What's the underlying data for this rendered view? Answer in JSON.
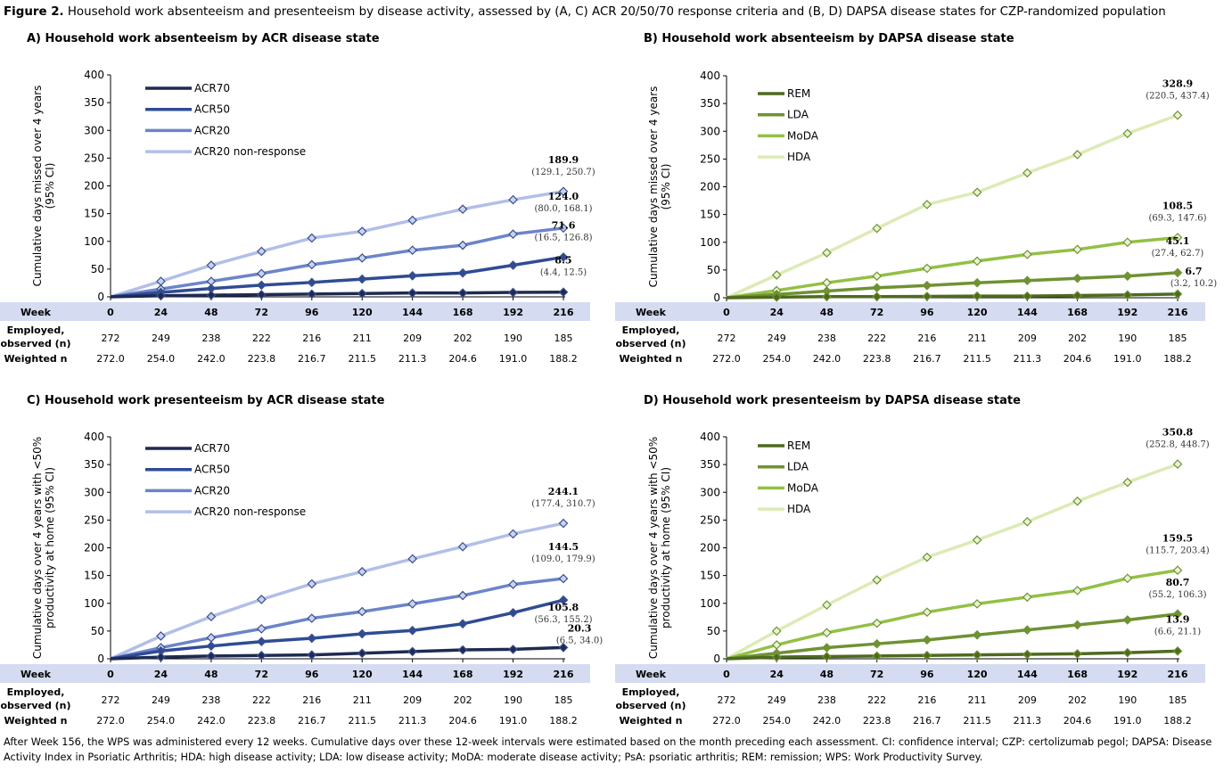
{
  "figure": {
    "label": "Figure 2.",
    "caption": " Household work absenteeism and presenteeism by disease activity, assessed by (A, C) ACR 20/50/70 response criteria and (B, D) DAPSA disease states for CZP-randomized population"
  },
  "footnote": "After Week 156, the WPS was administered every 12 weeks. Cumulative days over these 12-week intervals were estimated based on the month preceding each assessment. CI: confidence interval; CZP: certolizumab pegol; DAPSA: Disease Activity Index in Psoriatic Arthritis; HDA: high disease activity; LDA: low disease activity; MoDA: moderate disease activity; PsA: psoriatic arthritis; REM: remission; WPS: Work Productivity Survey.",
  "table": {
    "week_label": "Week",
    "employed_label_1": "Employed,",
    "employed_label_2": "observed (n)",
    "weighted_label": "Weighted n",
    "weeks": [
      "0",
      "24",
      "48",
      "72",
      "96",
      "120",
      "144",
      "168",
      "192",
      "216"
    ],
    "employed": [
      "272",
      "249",
      "238",
      "222",
      "216",
      "211",
      "209",
      "202",
      "190",
      "185"
    ],
    "weighted": [
      "272.0",
      "254.0",
      "242.0",
      "223.8",
      "216.7",
      "211.5",
      "211.3",
      "204.6",
      "191.0",
      "188.2"
    ],
    "band_color": "#d5dbf0"
  },
  "chart_data": [
    {
      "type": "line",
      "title": "A) Household work absenteeism by ACR disease state",
      "ylabel": [
        "Cumulative days missed over 4 years",
        "(95% CI)"
      ],
      "x": [
        0,
        24,
        48,
        72,
        96,
        120,
        144,
        168,
        192,
        216
      ],
      "ylim": [
        0,
        400
      ],
      "yticks": [
        "0",
        "50",
        "100",
        "150",
        "200",
        "250",
        "300",
        "350",
        "400"
      ],
      "legend": "top-left",
      "series": [
        {
          "name": "ACR70",
          "color": "#1e2a52",
          "values": [
            0,
            2,
            3,
            4,
            5,
            6,
            7,
            7,
            8,
            8.5
          ],
          "end_value": "8.5",
          "end_ci": "(4.4, 12.5)"
        },
        {
          "name": "ACR50",
          "color": "#2f4b93",
          "values": [
            0,
            8,
            15,
            21,
            26,
            32,
            38,
            43,
            57,
            71.6
          ],
          "end_value": "71.6",
          "end_ci": "(16.5, 126.8)"
        },
        {
          "name": "ACR20",
          "color": "#6c84c9",
          "values": [
            0,
            14,
            28,
            42,
            58,
            70,
            84,
            93,
            113,
            124.0
          ],
          "end_value": "124.0",
          "end_ci": "(80.0, 168.1)"
        },
        {
          "name": "ACR20 non-response",
          "color": "#b1bfe8",
          "values": [
            0,
            28,
            57,
            82,
            106,
            118,
            138,
            158,
            175,
            189.9
          ],
          "end_value": "189.9",
          "end_ci": "(129.1, 250.7)"
        }
      ]
    },
    {
      "type": "line",
      "title": "B) Household work absenteeism by DAPSA disease state",
      "ylabel": [
        "Cumulative days missed over 4 years",
        "(95% CI)"
      ],
      "x": [
        0,
        24,
        48,
        72,
        96,
        120,
        144,
        168,
        192,
        216
      ],
      "ylim": [
        0,
        400
      ],
      "yticks": [
        "0",
        "50",
        "100",
        "150",
        "200",
        "250",
        "300",
        "350",
        "400"
      ],
      "legend": "top-left",
      "series": [
        {
          "name": "REM",
          "color": "#4e6a1f",
          "values": [
            0,
            1,
            2,
            2,
            2.5,
            3,
            3,
            4,
            5,
            6.7
          ],
          "end_value": "6.7",
          "end_ci": "(3.2, 10.2)"
        },
        {
          "name": "LDA",
          "color": "#6f9232",
          "values": [
            0,
            6,
            12,
            18,
            22,
            27,
            31,
            35,
            39,
            45.1
          ],
          "end_value": "45.1",
          "end_ci": "(27.4, 62.7)"
        },
        {
          "name": "MoDA",
          "color": "#93c045",
          "values": [
            0,
            13,
            27,
            39,
            53,
            66,
            78,
            87,
            100,
            108.5
          ],
          "end_value": "108.5",
          "end_ci": "(69.3, 147.6)"
        },
        {
          "name": "HDA",
          "color": "#dcebb4",
          "values": [
            0,
            41,
            81,
            125,
            168,
            190,
            225,
            258,
            296,
            328.9
          ],
          "end_value": "328.9",
          "end_ci": "(220.5, 437.4)"
        }
      ]
    },
    {
      "type": "line",
      "title": "C) Household work presenteeism by ACR disease state",
      "ylabel": [
        "Cumulative days over 4 years with <50%",
        "productivity at home (95% CI)"
      ],
      "x": [
        0,
        24,
        48,
        72,
        96,
        120,
        144,
        168,
        192,
        216
      ],
      "ylim": [
        0,
        400
      ],
      "yticks": [
        "0",
        "50",
        "100",
        "150",
        "200",
        "250",
        "300",
        "350",
        "400"
      ],
      "legend": "top-left",
      "series": [
        {
          "name": "ACR70",
          "color": "#1e2a52",
          "values": [
            0,
            3,
            5,
            6,
            7,
            10,
            13,
            16,
            17,
            20.3
          ],
          "end_value": "20.3",
          "end_ci": "(6.5, 34.0)"
        },
        {
          "name": "ACR50",
          "color": "#2f4b93",
          "values": [
            0,
            14,
            23,
            31,
            37,
            45,
            51,
            63,
            83,
            105.8
          ],
          "end_value": "105.8",
          "end_ci": "(56.3, 155.2)"
        },
        {
          "name": "ACR20",
          "color": "#6c84c9",
          "values": [
            0,
            20,
            38,
            54,
            73,
            85,
            99,
            114,
            134,
            144.5
          ],
          "end_value": "144.5",
          "end_ci": "(109.0, 179.9)"
        },
        {
          "name": "ACR20 non-response",
          "color": "#b1bfe8",
          "values": [
            0,
            41,
            76,
            107,
            135,
            157,
            180,
            202,
            225,
            244.1
          ],
          "end_value": "244.1",
          "end_ci": "(177.4, 310.7)"
        }
      ]
    },
    {
      "type": "line",
      "title": "D) Household work presenteeism by DAPSA disease state",
      "ylabel": [
        "Cumulative days over 4 years with <50%",
        "productivity at home (95% CI)"
      ],
      "x": [
        0,
        24,
        48,
        72,
        96,
        120,
        144,
        168,
        192,
        216
      ],
      "ylim": [
        0,
        400
      ],
      "yticks": [
        "0",
        "50",
        "100",
        "150",
        "200",
        "250",
        "300",
        "350",
        "400"
      ],
      "legend": "top-left",
      "series": [
        {
          "name": "REM",
          "color": "#4e6a1f",
          "values": [
            0,
            3,
            4,
            5,
            6,
            7,
            8,
            9,
            11,
            13.9
          ],
          "end_value": "13.9",
          "end_ci": "(6.6, 21.1)"
        },
        {
          "name": "LDA",
          "color": "#6f9232",
          "values": [
            0,
            10,
            20,
            27,
            34,
            43,
            52,
            61,
            70,
            80.7
          ],
          "end_value": "80.7",
          "end_ci": "(55.2, 106.3)"
        },
        {
          "name": "MoDA",
          "color": "#93c045",
          "values": [
            0,
            25,
            47,
            64,
            84,
            99,
            111,
            123,
            145,
            159.5
          ],
          "end_value": "159.5",
          "end_ci": "(115.7, 203.4)"
        },
        {
          "name": "HDA",
          "color": "#dcebb4",
          "values": [
            0,
            50,
            97,
            142,
            183,
            214,
            247,
            284,
            318,
            350.8
          ],
          "end_value": "350.8",
          "end_ci": "(252.8, 448.7)"
        }
      ]
    }
  ]
}
